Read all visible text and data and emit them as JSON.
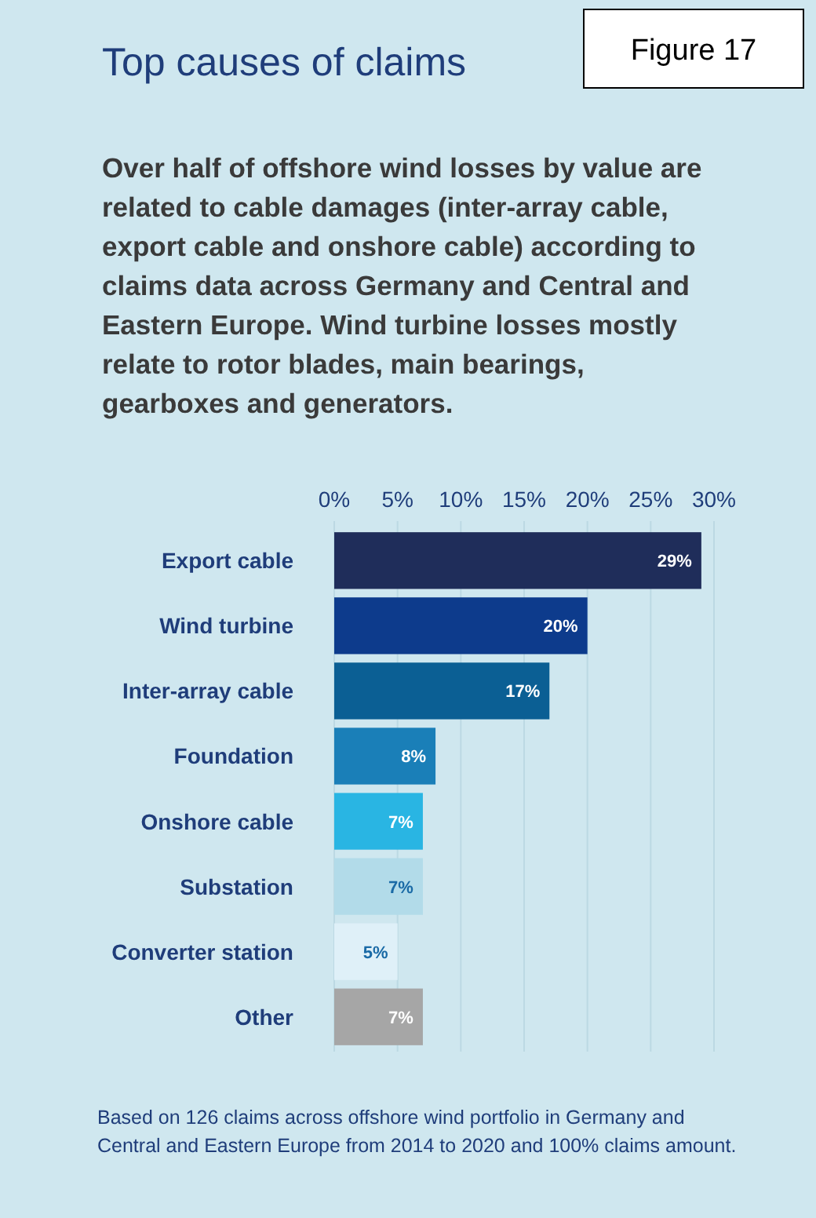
{
  "chart_data": {
    "type": "bar",
    "orientation": "horizontal",
    "title": "Top causes of claims",
    "subtitle": "Over half of offshore wind losses by value are related to cable damages (inter-array cable, export cable and onshore cable) according to claims data across Germany and Central and Eastern Europe. Wind turbine losses mostly relate to rotor blades, main bearings, gearboxes and generators.",
    "annotations": [
      "Figure 17",
      "Based on 126 claims across offshore wind portfolio in Germany and Central and Eastern Europe from 2014 to 2020 and 100% claims amount."
    ],
    "categories": [
      "Export cable",
      "Wind turbine",
      "Inter-array cable",
      "Foundation",
      "Onshore cable",
      "Substation",
      "Converter station",
      "Other"
    ],
    "values": [
      29,
      20,
      17,
      8,
      7,
      7,
      5,
      7
    ],
    "value_labels": [
      "29%",
      "20%",
      "17%",
      "8%",
      "7%",
      "7%",
      "5%",
      "7%"
    ],
    "colors": [
      "#1f2d5a",
      "#0d3b8c",
      "#0b5f94",
      "#1a7fb8",
      "#29b5e3",
      "#b2dbe9",
      "#dff0f8",
      "#a6a6a6"
    ],
    "xlim": [
      0,
      30
    ],
    "xticks": [
      {
        "value": 0,
        "label": "0%"
      },
      {
        "value": 5,
        "label": "5%"
      },
      {
        "value": 10,
        "label": "10%"
      },
      {
        "value": 15,
        "label": "15%"
      },
      {
        "value": 20,
        "label": "20%"
      },
      {
        "value": 25,
        "label": "25%"
      },
      {
        "value": 30,
        "label": "30%"
      }
    ],
    "grid": "x"
  }
}
